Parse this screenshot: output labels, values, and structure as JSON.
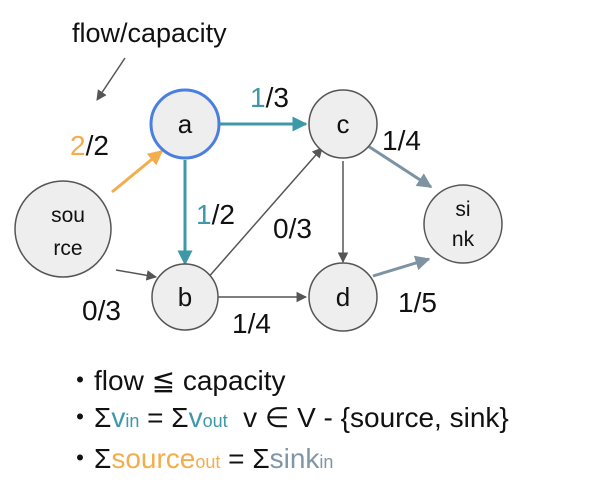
{
  "header": {
    "label": "flow/capacity"
  },
  "nodes": {
    "source": {
      "line1": "sou",
      "line2": "rce"
    },
    "a": {
      "label": "a"
    },
    "b": {
      "label": "b"
    },
    "c": {
      "label": "c"
    },
    "d": {
      "label": "d"
    },
    "sink": {
      "line1": "si",
      "line2": "nk"
    }
  },
  "edges": {
    "source_a": {
      "flow": "2",
      "capacity": "/2"
    },
    "a_c": {
      "flow": "1",
      "capacity": "/3"
    },
    "a_b": {
      "flow": "1",
      "capacity": "/2"
    },
    "b_c": {
      "label": "0/3"
    },
    "source_b": {
      "label": "0/3"
    },
    "b_d": {
      "label": "1/4"
    },
    "c_sink": {
      "label": "1/4"
    },
    "d_sink": {
      "label": "1/5"
    }
  },
  "rules": {
    "bullet": "・",
    "rule1": "flow ≦ capacity",
    "rule2": {
      "sigma1": "Σ",
      "v1": "v",
      "in": "in",
      "eq": " = Σ",
      "v2": "v",
      "out": "out",
      "tail": "  v ∈ V - {source, sink}"
    },
    "rule3": {
      "sigma1": "Σ",
      "source": "source",
      "out": "out",
      "eq": " = Σ",
      "sink": "sink",
      "in": "in"
    }
  },
  "colors": {
    "flow_full": "#f3ad4d",
    "flow_partial": "#3d98a7",
    "to_sink": "#7d93a3",
    "idle": "#555555",
    "node_fill": "#eeeeee",
    "node_stroke": "#555555",
    "highlight_stroke": "#4a7fe0"
  }
}
